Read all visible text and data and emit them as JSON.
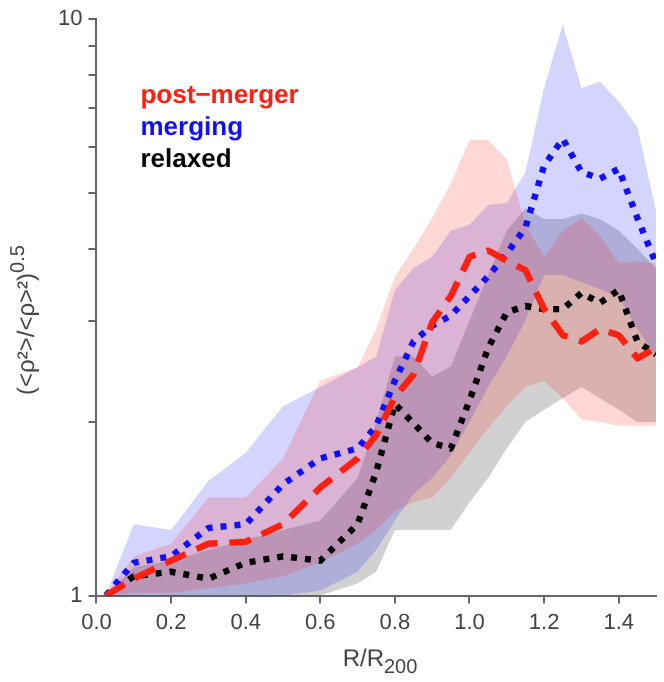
{
  "chart_data": {
    "type": "line",
    "x": [
      0.025,
      0.1,
      0.2,
      0.3,
      0.4,
      0.5,
      0.6,
      0.7,
      0.75,
      0.8,
      0.85,
      0.9,
      0.95,
      1.0,
      1.05,
      1.1,
      1.15,
      1.2,
      1.25,
      1.3,
      1.35,
      1.4,
      1.45,
      1.5
    ],
    "series": [
      {
        "name": "post−merger",
        "color": "#ff2010",
        "line_style": "dashed",
        "values": [
          1.0,
          1.07,
          1.15,
          1.23,
          1.24,
          1.33,
          1.54,
          1.73,
          1.9,
          2.21,
          2.42,
          2.98,
          3.31,
          3.87,
          3.97,
          3.81,
          3.67,
          3.14,
          2.83,
          2.76,
          2.9,
          2.83,
          2.58,
          2.69
        ],
        "lower": [
          1.0,
          1.01,
          1.01,
          1.03,
          1.05,
          1.08,
          1.14,
          1.23,
          1.3,
          1.4,
          1.45,
          1.48,
          1.6,
          1.77,
          1.95,
          2.13,
          2.3,
          2.36,
          2.2,
          2.02,
          2.0,
          1.97,
          1.97,
          1.97
        ],
        "upper": [
          1.0,
          1.17,
          1.23,
          1.48,
          1.48,
          1.73,
          2.36,
          2.49,
          2.9,
          3.58,
          4.0,
          4.52,
          5.2,
          6.18,
          6.18,
          5.71,
          4.4,
          3.87,
          4.3,
          4.52,
          4.2,
          3.77,
          3.8,
          3.77
        ]
      },
      {
        "name": "merging",
        "color": "#1010ff",
        "line_style": "dotted",
        "values": [
          1.0,
          1.14,
          1.17,
          1.31,
          1.33,
          1.56,
          1.73,
          1.8,
          1.97,
          2.36,
          2.76,
          2.94,
          3.06,
          3.31,
          3.58,
          3.92,
          4.35,
          5.57,
          6.2,
          5.43,
          5.29,
          5.5,
          4.52,
          3.77
        ],
        "lower": [
          1.0,
          1.0,
          1.0,
          1.0,
          1.0,
          1.0,
          1.02,
          1.1,
          1.2,
          1.35,
          1.5,
          1.6,
          1.75,
          2.0,
          2.3,
          2.6,
          3.0,
          3.6,
          3.6,
          3.5,
          3.4,
          3.3,
          2.9,
          2.6
        ],
        "upper": [
          1.0,
          1.33,
          1.3,
          1.58,
          1.77,
          2.13,
          2.3,
          2.49,
          2.6,
          3.39,
          3.7,
          3.87,
          4.3,
          4.4,
          4.76,
          4.8,
          5.43,
          7.6,
          9.8,
          7.6,
          7.8,
          7.2,
          6.5,
          4.65
        ]
      },
      {
        "name": "relaxed",
        "color": "#000000",
        "line_style": "dotted",
        "values": [
          1.0,
          1.08,
          1.1,
          1.07,
          1.14,
          1.17,
          1.15,
          1.33,
          1.64,
          2.15,
          1.99,
          1.84,
          1.8,
          2.18,
          2.69,
          3.1,
          3.18,
          3.14,
          3.14,
          3.35,
          3.22,
          3.39,
          2.76,
          2.62
        ],
        "lower": [
          1.0,
          1.0,
          1.0,
          1.0,
          1.0,
          1.0,
          1.0,
          1.05,
          1.1,
          1.3,
          1.3,
          1.3,
          1.3,
          1.45,
          1.6,
          1.8,
          2.0,
          2.1,
          2.2,
          2.3,
          2.2,
          2.1,
          2.0,
          2.0
        ],
        "upper": [
          1.0,
          1.12,
          1.15,
          1.2,
          1.25,
          1.3,
          1.35,
          1.6,
          2.0,
          2.6,
          2.6,
          2.4,
          2.5,
          3.0,
          3.6,
          4.3,
          4.7,
          4.5,
          4.5,
          4.6,
          4.5,
          4.3,
          4.0,
          3.7
        ]
      }
    ],
    "xlabel": "R/R$_{200}$",
    "ylabel": "(<ρ²>/<ρ>²)$^{0.5}$",
    "xlim": [
      0,
      1.5
    ],
    "xticks": [
      {
        "value": 0,
        "label": "0.0"
      },
      0.2,
      0.4,
      0.6,
      0.8,
      {
        "value": 1,
        "label": "1.0"
      },
      1.2,
      1.4
    ],
    "ylim": [
      1,
      10
    ],
    "yticks": [
      1,
      {
        "value": 2,
        "label": null
      },
      {
        "value": 3,
        "label": null
      },
      {
        "value": 4,
        "label": null
      },
      {
        "value": 5,
        "label": null
      },
      {
        "value": 6,
        "label": null
      },
      {
        "value": 7,
        "label": null
      },
      {
        "value": 8,
        "label": null
      },
      {
        "value": 9,
        "label": null
      },
      10
    ],
    "log": "y",
    "grid": false,
    "legend": "top left",
    "marker": "none"
  }
}
